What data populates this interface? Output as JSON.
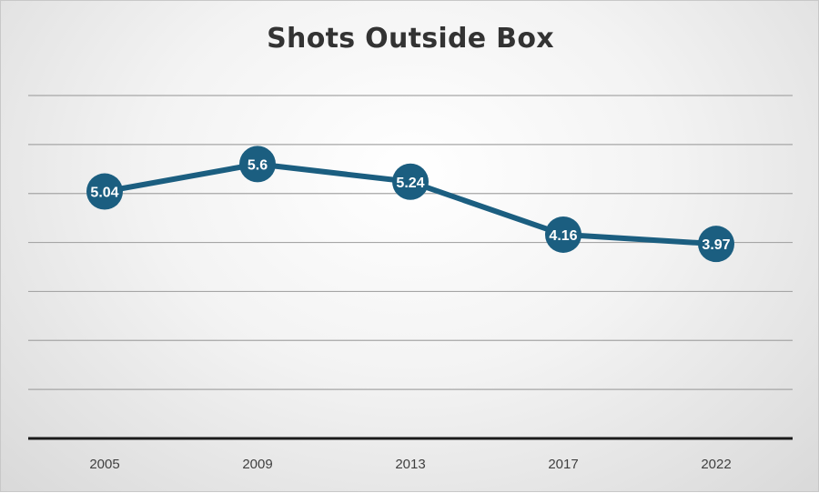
{
  "chart_data": {
    "type": "line",
    "title": "Shots Outside Box",
    "xlabel": "",
    "ylabel": "",
    "categories": [
      "2005",
      "2009",
      "2013",
      "2017",
      "2022"
    ],
    "series": [
      {
        "values": [
          5.04,
          5.6,
          5.24,
          4.16,
          3.97
        ],
        "data_labels": [
          "5.04",
          "5.6",
          "5.24",
          "4.16",
          "3.97"
        ]
      }
    ],
    "ylim": [
      0,
      7
    ],
    "y_gridlines": [
      1,
      2,
      3,
      4,
      5,
      6,
      7
    ],
    "grid": true,
    "legend": "none",
    "colors": {
      "series": "#1b5e80",
      "grid": "#a6a6a6",
      "axis": "#1a1a1a"
    }
  }
}
